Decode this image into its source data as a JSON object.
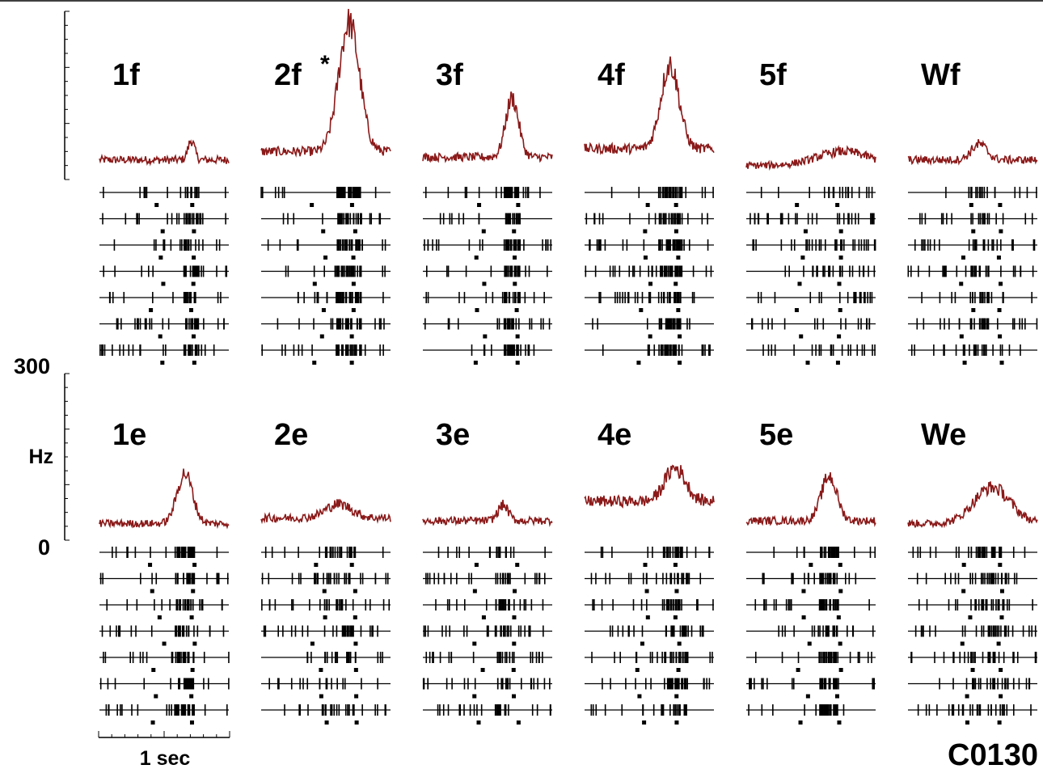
{
  "figure": {
    "y_axis_label": "Hz",
    "y_tick_top": "300",
    "y_tick_bottom": "0",
    "scale_bar_label": "1 sec",
    "cell_id": "C0130",
    "psth_color": "#8b1a1a"
  },
  "chart_data": {
    "type": "line",
    "description_units": {
      "y": "Hz",
      "x": "time (s)"
    },
    "ylim": [
      0,
      300
    ],
    "y_ticks": [
      "0",
      "300"
    ],
    "ylabel": "Hz",
    "xlabel": "1 sec",
    "panels": [
      {
        "label": "1f",
        "star": "",
        "row": 0,
        "baseline": 35,
        "peaks": [
          {
            "t": 0.71,
            "amp": 35,
            "w": 0.025
          }
        ]
      },
      {
        "label": "2f",
        "star": "*",
        "row": 0,
        "baseline": 50,
        "peaks": [
          {
            "t": 0.68,
            "amp": 230,
            "w": 0.08
          }
        ]
      },
      {
        "label": "3f",
        "star": "",
        "row": 0,
        "baseline": 40,
        "peaks": [
          {
            "t": 0.69,
            "amp": 105,
            "w": 0.05
          }
        ]
      },
      {
        "label": "4f",
        "star": "",
        "row": 0,
        "baseline": 55,
        "peaks": [
          {
            "t": 0.66,
            "amp": 150,
            "w": 0.07
          }
        ]
      },
      {
        "label": "5f",
        "star": "",
        "row": 0,
        "baseline": 25,
        "peaks": [
          {
            "t": 0.75,
            "amp": 25,
            "w": 0.2
          }
        ]
      },
      {
        "label": "Wf",
        "star": "",
        "row": 0,
        "baseline": 35,
        "peaks": [
          {
            "t": 0.55,
            "amp": 28,
            "w": 0.06
          }
        ]
      },
      {
        "label": "1e",
        "star": "",
        "row": 1,
        "baseline": 30,
        "peaks": [
          {
            "t": 0.66,
            "amp": 90,
            "w": 0.06
          }
        ]
      },
      {
        "label": "2e",
        "star": "",
        "row": 1,
        "baseline": 40,
        "peaks": [
          {
            "t": 0.6,
            "amp": 25,
            "w": 0.1
          }
        ]
      },
      {
        "label": "3e",
        "star": "",
        "row": 1,
        "baseline": 35,
        "peaks": [
          {
            "t": 0.62,
            "amp": 28,
            "w": 0.04
          }
        ]
      },
      {
        "label": "4e",
        "star": "",
        "row": 1,
        "baseline": 70,
        "peaks": [
          {
            "t": 0.7,
            "amp": 60,
            "w": 0.08
          }
        ]
      },
      {
        "label": "5e",
        "star": "",
        "row": 1,
        "baseline": 35,
        "peaks": [
          {
            "t": 0.64,
            "amp": 80,
            "w": 0.06
          }
        ]
      },
      {
        "label": "We",
        "star": "",
        "row": 1,
        "baseline": 30,
        "peaks": [
          {
            "t": 0.65,
            "amp": 65,
            "w": 0.14
          }
        ]
      }
    ],
    "raster_trials_per_panel": 7
  }
}
